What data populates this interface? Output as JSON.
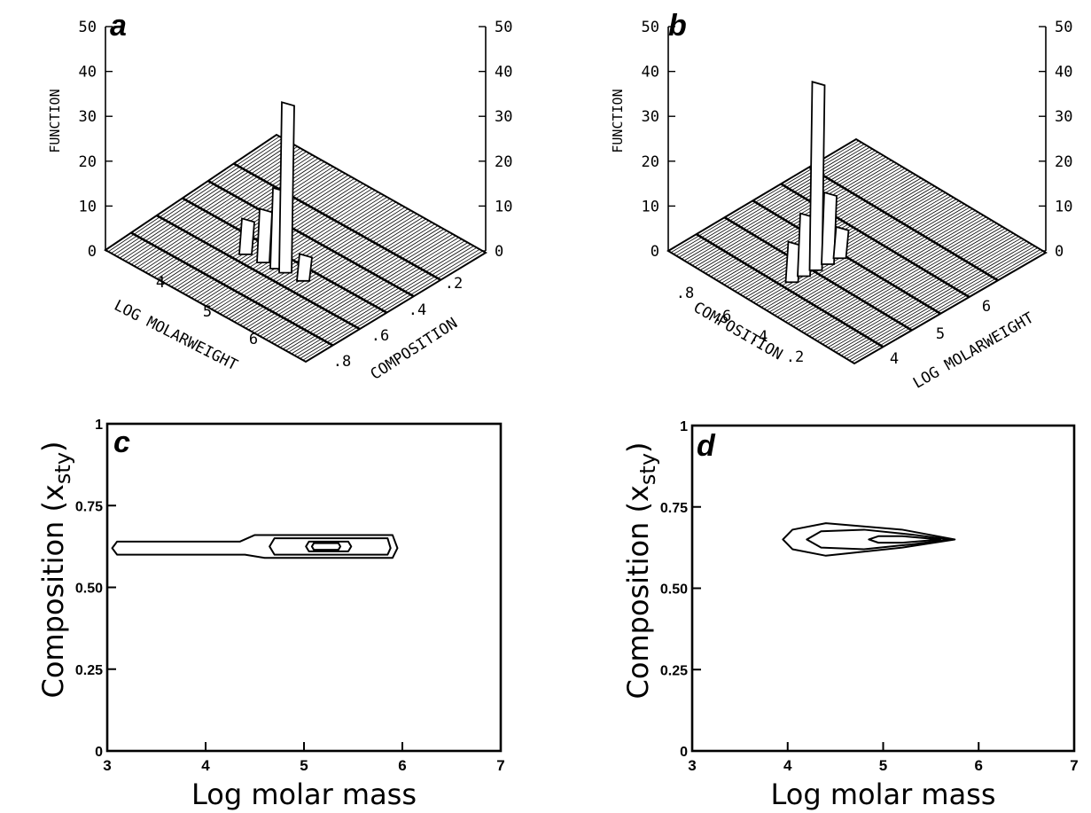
{
  "chart_data": [
    {
      "panel": "a",
      "type": "surface3d",
      "z_axis_label": "FUNCTION",
      "z_ticks": [
        "0",
        "10",
        "20",
        "30",
        "40",
        "50"
      ],
      "x_axis_label": "LOG MOLARWEIGHT",
      "x_ticks": [
        "4",
        "5",
        "6"
      ],
      "y_axis_label": "COMPOSITION",
      "y_ticks": [
        ".8",
        ".6",
        ".4",
        ".2"
      ],
      "peaks": [
        {
          "log_molar_weight": 4.3,
          "composition": 0.62,
          "value": 8
        },
        {
          "log_molar_weight": 4.7,
          "composition": 0.62,
          "value": 12
        },
        {
          "log_molar_weight": 5.0,
          "composition": 0.62,
          "value": 18
        },
        {
          "log_molar_weight": 5.2,
          "composition": 0.62,
          "value": 38
        },
        {
          "log_molar_weight": 5.6,
          "composition": 0.62,
          "value": 6
        }
      ]
    },
    {
      "panel": "b",
      "type": "surface3d",
      "z_axis_label": "FUNCTION",
      "z_ticks": [
        "0",
        "10",
        "20",
        "30",
        "40",
        "50"
      ],
      "x_axis_label": "LOG MOLARWEIGHT",
      "x_ticks": [
        "4",
        "5",
        "6"
      ],
      "y_axis_label": "COMPOSITION",
      "y_ticks": [
        ".8",
        ".6",
        ".4",
        ".2"
      ],
      "peaks": [
        {
          "log_molar_weight": 4.3,
          "composition": 0.65,
          "value": 9
        },
        {
          "log_molar_weight": 4.6,
          "composition": 0.65,
          "value": 14
        },
        {
          "log_molar_weight": 4.9,
          "composition": 0.65,
          "value": 42
        },
        {
          "log_molar_weight": 5.2,
          "composition": 0.65,
          "value": 16
        },
        {
          "log_molar_weight": 5.5,
          "composition": 0.65,
          "value": 7
        }
      ]
    },
    {
      "panel": "c",
      "type": "contour",
      "xlabel": "Log molar mass",
      "ylabel": "Composition (x",
      "ylabel_sub": "sty",
      "ylabel_close": ")",
      "xlim": [
        3,
        7
      ],
      "ylim": [
        0,
        1
      ],
      "x_ticks": [
        "3",
        "4",
        "5",
        "6",
        "7"
      ],
      "y_ticks": [
        "0",
        "0.25",
        "0.50",
        "0.75",
        "1"
      ],
      "contours": [
        [
          [
            3.1,
            0.6
          ],
          [
            4.4,
            0.6
          ],
          [
            4.6,
            0.59
          ],
          [
            5.9,
            0.59
          ],
          [
            5.95,
            0.62
          ],
          [
            5.9,
            0.66
          ],
          [
            4.5,
            0.66
          ],
          [
            4.35,
            0.64
          ],
          [
            3.1,
            0.64
          ],
          [
            3.05,
            0.62
          ]
        ],
        [
          [
            4.7,
            0.6
          ],
          [
            5.85,
            0.6
          ],
          [
            5.88,
            0.62
          ],
          [
            5.85,
            0.65
          ],
          [
            4.7,
            0.65
          ],
          [
            4.65,
            0.625
          ]
        ],
        [
          [
            5.05,
            0.61
          ],
          [
            5.45,
            0.61
          ],
          [
            5.48,
            0.625
          ],
          [
            5.45,
            0.64
          ],
          [
            5.05,
            0.64
          ],
          [
            5.02,
            0.625
          ]
        ],
        [
          [
            5.1,
            0.615
          ],
          [
            5.35,
            0.615
          ],
          [
            5.37,
            0.625
          ],
          [
            5.35,
            0.635
          ],
          [
            5.1,
            0.635
          ],
          [
            5.08,
            0.625
          ]
        ]
      ]
    },
    {
      "panel": "d",
      "type": "contour",
      "xlabel": "Log molar mass",
      "ylabel": "Composition (x",
      "ylabel_sub": "sty",
      "ylabel_close": ")",
      "xlim": [
        3,
        7
      ],
      "ylim": [
        0,
        1
      ],
      "x_ticks": [
        "3",
        "4",
        "5",
        "6",
        "7"
      ],
      "y_ticks": [
        "0",
        "0.25",
        "0.50",
        "0.75",
        "1"
      ],
      "contours": [
        [
          [
            3.95,
            0.65
          ],
          [
            4.05,
            0.68
          ],
          [
            4.4,
            0.7
          ],
          [
            5.2,
            0.68
          ],
          [
            5.75,
            0.65
          ],
          [
            5.2,
            0.625
          ],
          [
            4.4,
            0.6
          ],
          [
            4.05,
            0.62
          ]
        ],
        [
          [
            4.2,
            0.65
          ],
          [
            4.35,
            0.675
          ],
          [
            4.8,
            0.68
          ],
          [
            5.3,
            0.665
          ],
          [
            5.7,
            0.65
          ],
          [
            5.3,
            0.635
          ],
          [
            4.8,
            0.62
          ],
          [
            4.35,
            0.625
          ]
        ],
        [
          [
            4.85,
            0.65
          ],
          [
            4.95,
            0.66
          ],
          [
            5.2,
            0.66
          ],
          [
            5.6,
            0.65
          ],
          [
            5.2,
            0.64
          ],
          [
            4.95,
            0.64
          ]
        ]
      ]
    }
  ]
}
